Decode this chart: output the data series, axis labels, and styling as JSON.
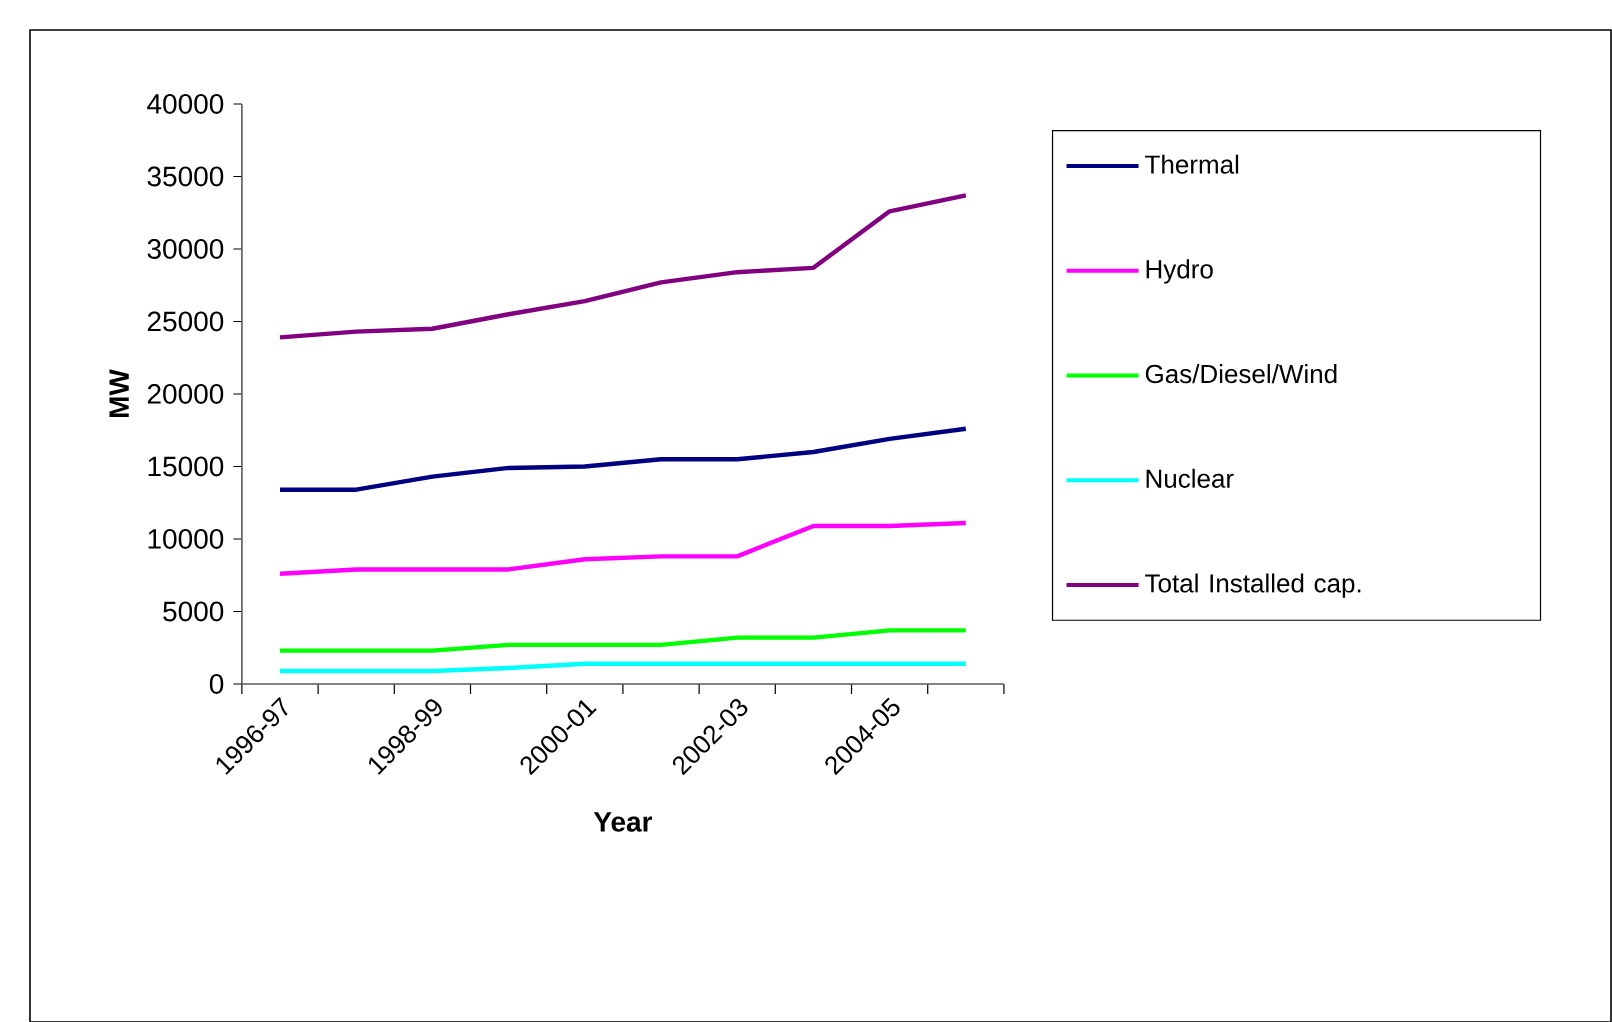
{
  "chart_data": {
    "type": "line",
    "xlabel": "Year",
    "ylabel": "MW",
    "categories": [
      "1996-97",
      null,
      "1998-99",
      null,
      "2000-01",
      null,
      "2002-03",
      null,
      "2004-05",
      null
    ],
    "series": [
      {
        "name": "Thermal",
        "color": "#000080",
        "values": [
          13400,
          13400,
          14300,
          14900,
          15000,
          15500,
          15500,
          16000,
          16900,
          17600
        ]
      },
      {
        "name": "Hydro",
        "color": "#ff00ff",
        "values": [
          7600,
          7900,
          7900,
          7900,
          8600,
          8800,
          8800,
          10900,
          10900,
          11100
        ]
      },
      {
        "name": "Gas/Diesel/Wind",
        "color": "#00ff00",
        "values": [
          2300,
          2300,
          2300,
          2700,
          2700,
          2700,
          3200,
          3200,
          3700,
          3700
        ]
      },
      {
        "name": "Nuclear",
        "color": "#00ffff",
        "values": [
          900,
          900,
          900,
          1100,
          1400,
          1400,
          1400,
          1400,
          1400,
          1400
        ]
      },
      {
        "name": "Total Installed cap.",
        "color": "#800080",
        "values": [
          23900,
          24300,
          24500,
          25500,
          26400,
          27700,
          28400,
          28700,
          32600,
          33700
        ]
      }
    ],
    "ylim": [
      0,
      40000
    ],
    "yticks": [
      0,
      5000,
      10000,
      15000,
      20000,
      25000,
      30000,
      35000,
      40000
    ],
    "grid": false,
    "legend": "right",
    "marker": "none",
    "line_style": "solid"
  }
}
